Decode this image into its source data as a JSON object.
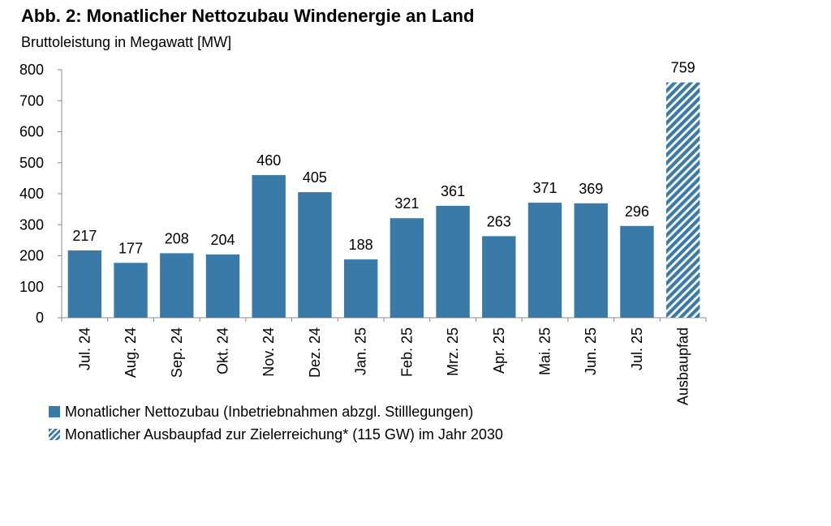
{
  "title": "Abb. 2: Monatlicher Nettozubau Windenergie an Land",
  "subtitle": "Bruttoleistung in Megawatt [MW]",
  "chart_data": {
    "type": "bar",
    "title": "Abb. 2: Monatlicher Nettozubau Windenergie an Land",
    "ylabel": "Bruttoleistung in Megawatt [MW]",
    "ylim": [
      0,
      800
    ],
    "yticks": [
      0,
      100,
      200,
      300,
      400,
      500,
      600,
      700,
      800
    ],
    "categories": [
      "Jul. 24",
      "Aug. 24",
      "Sep. 24",
      "Okt. 24",
      "Nov. 24",
      "Dez. 24",
      "Jan. 25",
      "Feb. 25",
      "Mrz. 25",
      "Apr. 25",
      "Mai. 25",
      "Jun. 25",
      "Jul. 25",
      "Ausbaupfad"
    ],
    "values": [
      217,
      177,
      208,
      204,
      460,
      405,
      188,
      321,
      361,
      263,
      371,
      369,
      296,
      759
    ],
    "series": [
      {
        "name": "Monatlicher Nettozubau (Inbetriebnahmen abzgl. Stilllegungen)",
        "pattern": "solid",
        "categories": [
          "Jul. 24",
          "Aug. 24",
          "Sep. 24",
          "Okt. 24",
          "Nov. 24",
          "Dez. 24",
          "Jan. 25",
          "Feb. 25",
          "Mrz. 25",
          "Apr. 25",
          "Mai. 25",
          "Jun. 25",
          "Jul. 25"
        ]
      },
      {
        "name": "Monatlicher Ausbaupfad zur Zielerreichung* (115 GW) im Jahr 2030",
        "pattern": "hatched",
        "categories": [
          "Ausbaupfad"
        ]
      }
    ],
    "grid": false,
    "legend": "bottom-left",
    "colors": {
      "bar": "#3a7aa8",
      "axis": "#888888"
    }
  }
}
